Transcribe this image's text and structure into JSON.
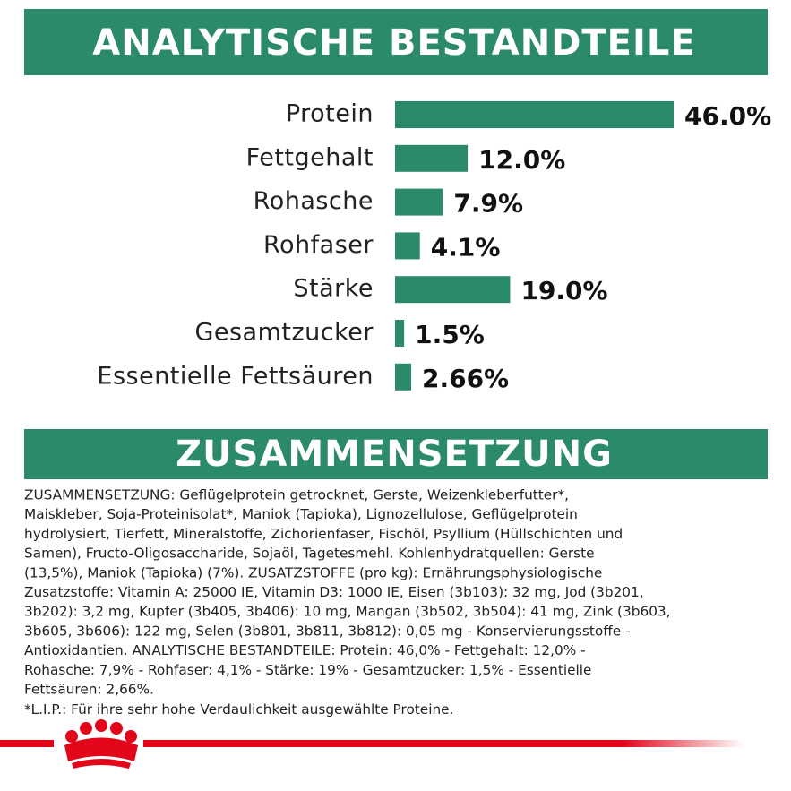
{
  "chart_data": {
    "type": "bar",
    "title": "ANALYTISCHE BESTANDTEILE",
    "categories": [
      "Protein",
      "Fettgehalt",
      "Rohasche",
      "Rohfaser",
      "Stärke",
      "Gesamtzucker",
      "Essentielle Fettsäuren"
    ],
    "values": [
      46.0,
      12.0,
      7.9,
      4.1,
      19.0,
      1.5,
      2.66
    ],
    "value_labels": [
      "46.0%",
      "12.0%",
      "7.9%",
      "4.1%",
      "19.0%",
      "1.5%",
      "2.66%"
    ],
    "color": "#2a8a6a"
  },
  "composition": {
    "heading": "ZUSAMMENSETZUNG",
    "lines": [
      "ZUSAMMENSETZUNG: Geflügelprotein getrocknet, Gerste, Weizenkleberfutter*,",
      "Maiskleber, Soja-Proteinisolat*, Maniok (Tapioka), Lignozellulose, Geflügelprotein",
      "hydrolysiert, Tierfett, Mineralstoffe, Zichorienfaser, Fischöl, Psyllium (Hüllschichten und",
      "Samen), Fructo-Oligosaccharide, Sojaöl, Tagetesmehl. Kohlenhydratquellen: Gerste",
      "(13,5%), Maniok (Tapioka) (7%). ZUSATZSTOFFE (pro kg): Ernährungsphysiologische",
      "Zusatzstoffe: Vitamin A: 25000 IE, Vitamin D3: 1000 IE, Eisen (3b103): 32 mg, Jod (3b201,",
      "3b202): 3,2 mg, Kupfer (3b405, 3b406): 10 mg, Mangan (3b502, 3b504): 41 mg, Zink (3b603,",
      "3b605, 3b606): 122 mg, Selen (3b801, 3b811, 3b812): 0,05 mg - Konservierungsstoffe -",
      "Antioxidantien. ANALYTISCHE BESTANDTEILE: Protein: 46,0% - Fettgehalt: 12,0% -",
      "Rohasche: 7,9% - Rohfaser: 4,1% - Stärke: 19% - Gesamtzucker: 1,5% - Essentielle",
      "Fettsäuren: 2,66%.",
      "*L.I.P.: Für ihre sehr hohe Verdaulichkeit ausgewählte Proteine."
    ]
  }
}
